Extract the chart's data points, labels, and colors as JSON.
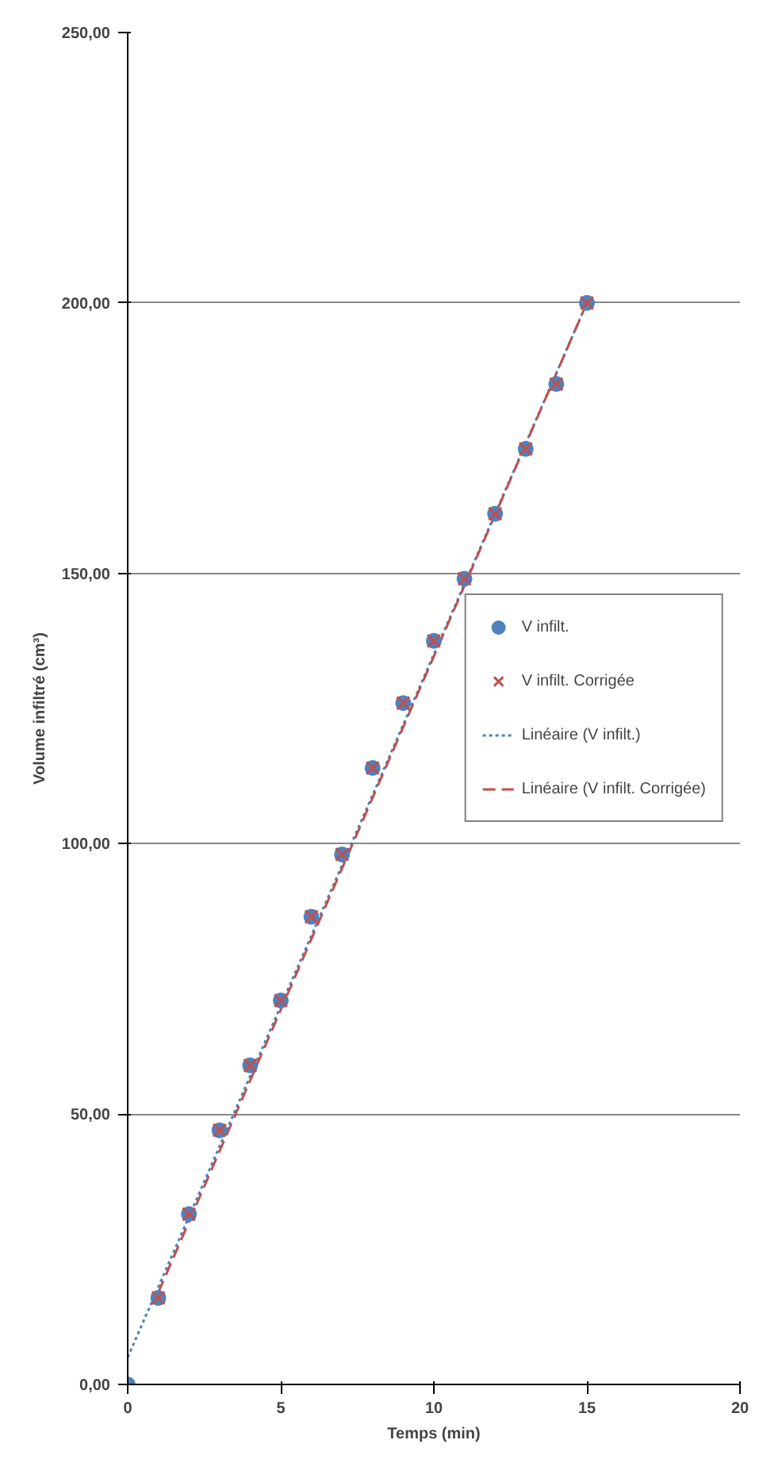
{
  "chart_data": {
    "type": "scatter",
    "xlabel": "Temps (min)",
    "ylabel": "Volume infiltré (cm³)",
    "xlim": [
      0,
      20
    ],
    "ylim": [
      0,
      250
    ],
    "xticks": [
      0,
      5,
      10,
      15,
      20
    ],
    "yticks": [
      {
        "value": 0,
        "label": "0,00"
      },
      {
        "value": 50,
        "label": "50,00"
      },
      {
        "value": 100,
        "label": "100,00"
      },
      {
        "value": 150,
        "label": "150,00"
      },
      {
        "value": 200,
        "label": "200,00"
      },
      {
        "value": 250,
        "label": "250,00"
      }
    ],
    "grid": "y",
    "legend": "right",
    "series": [
      {
        "name": "V infilt.",
        "marker": "circle",
        "color": "#4f81bd",
        "x": [
          0,
          1,
          2,
          3,
          4,
          5,
          6,
          7,
          8,
          9,
          10,
          11,
          12,
          13,
          14,
          15
        ],
        "values": [
          0,
          16,
          31.5,
          47,
          59,
          71,
          86.5,
          98,
          114,
          126,
          137.5,
          149,
          161,
          173,
          185,
          200
        ]
      },
      {
        "name": "V infilt. Corrigée",
        "marker": "cross",
        "color": "#c0504d",
        "x": [
          1,
          2,
          3,
          4,
          5,
          6,
          7,
          8,
          9,
          10,
          11,
          12,
          13,
          14,
          15
        ],
        "values": [
          16,
          31.5,
          47,
          59,
          71,
          86.5,
          98,
          114,
          126,
          137.5,
          149,
          161,
          173,
          185,
          200
        ]
      },
      {
        "name": "Linéaire (V infilt.)",
        "type": "line",
        "line_style": "dotted",
        "color": "#4f81bd",
        "x": [
          0,
          15
        ],
        "values": [
          5,
          200
        ]
      },
      {
        "name": "Linéaire (V infilt. Corrigée)",
        "type": "line",
        "line_style": "dashed",
        "color": "#c0504d",
        "x": [
          1,
          15
        ],
        "values": [
          17,
          200
        ]
      }
    ]
  }
}
